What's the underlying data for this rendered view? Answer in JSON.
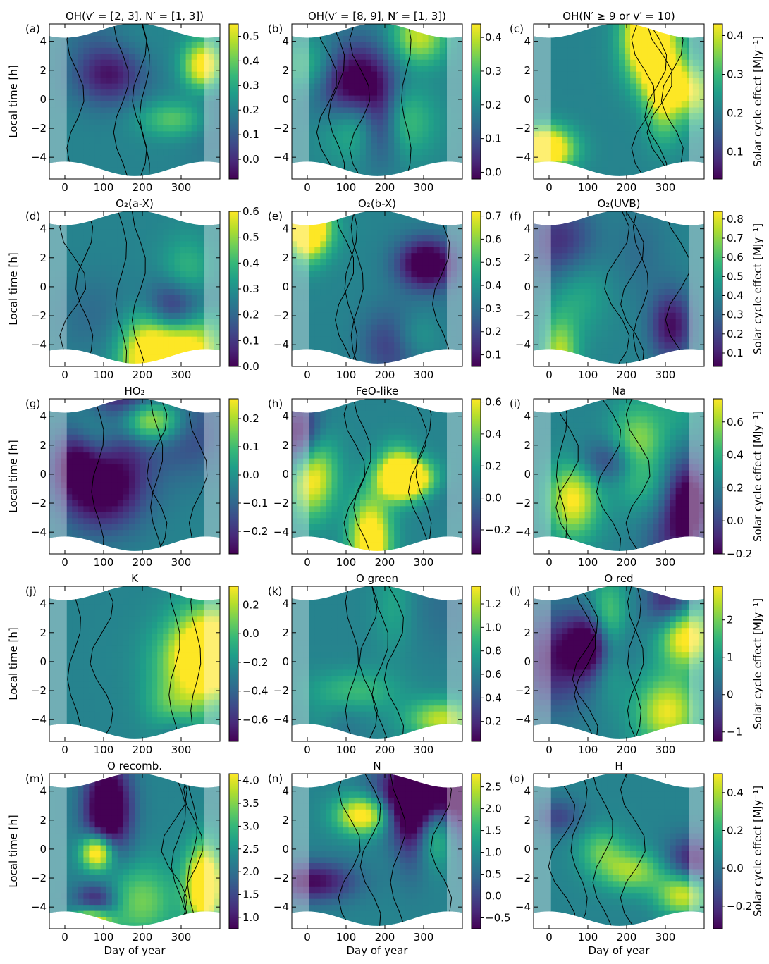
{
  "figure": {
    "row_ylabel": "Local time [h]",
    "col_xlabel": "Day of year",
    "cbar_label": "Solar cycle effect [MJy⁻¹]"
  },
  "chart_data": [
    {
      "type": "heatmap",
      "letter": "(a)",
      "title": "OH(v′ = [2, 3], N′ = [1, 3])",
      "xlim": [
        -40,
        400
      ],
      "ylim": [
        -5.5,
        5.2
      ],
      "xticks": [
        "0",
        "100",
        "200",
        "300"
      ],
      "yticks": [
        "4",
        "2",
        "0",
        "−2",
        "−4"
      ],
      "colorbar": {
        "range": [
          -0.08,
          0.55
        ],
        "ticks": [
          "0.0",
          "0.1",
          "0.2",
          "0.3",
          "0.4",
          "0.5"
        ],
        "tick_values": [
          0.0,
          0.1,
          0.2,
          0.3,
          0.4,
          0.5
        ]
      },
      "colormap": "viridis"
    },
    {
      "type": "heatmap",
      "letter": "(b)",
      "title": "OH(v′ = [8, 9], N′ = [1, 3])",
      "xlim": [
        -40,
        400
      ],
      "ylim": [
        -5.5,
        5.2
      ],
      "xticks": [
        "0",
        "100",
        "200",
        "300"
      ],
      "yticks": [
        "4",
        "2",
        "0",
        "−2",
        "−4"
      ],
      "colorbar": {
        "range": [
          -0.02,
          0.44
        ],
        "ticks": [
          "0.0",
          "0.1",
          "0.2",
          "0.3",
          "0.4"
        ],
        "tick_values": [
          0.0,
          0.1,
          0.2,
          0.3,
          0.4
        ]
      },
      "colormap": "viridis"
    },
    {
      "type": "heatmap",
      "letter": "(c)",
      "title": "OH(N′ ≥ 9 or v′ = 10)",
      "xlim": [
        -40,
        400
      ],
      "ylim": [
        -5.5,
        5.2
      ],
      "xticks": [
        "0",
        "100",
        "200",
        "300"
      ],
      "yticks": [
        "4",
        "2",
        "0",
        "−2",
        "−4"
      ],
      "colorbar": {
        "range": [
          0.03,
          0.43
        ],
        "ticks": [
          "0.1",
          "0.2",
          "0.3",
          "0.4"
        ],
        "tick_values": [
          0.1,
          0.2,
          0.3,
          0.4
        ]
      },
      "colormap": "viridis"
    },
    {
      "type": "heatmap",
      "letter": "(d)",
      "title": "O₂(a-X)",
      "xlim": [
        -40,
        400
      ],
      "ylim": [
        -5.5,
        5.2
      ],
      "xticks": [
        "0",
        "100",
        "200",
        "300"
      ],
      "yticks": [
        "4",
        "2",
        "0",
        "−2",
        "−4"
      ],
      "colorbar": {
        "range": [
          0.0,
          0.6
        ],
        "ticks": [
          "0.0",
          "0.1",
          "0.2",
          "0.3",
          "0.4",
          "0.5",
          "0.6"
        ],
        "tick_values": [
          0.0,
          0.1,
          0.2,
          0.3,
          0.4,
          0.5,
          0.6
        ]
      },
      "colormap": "viridis"
    },
    {
      "type": "heatmap",
      "letter": "(e)",
      "title": "O₂(b-X)",
      "xlim": [
        -40,
        400
      ],
      "ylim": [
        -5.5,
        5.2
      ],
      "xticks": [
        "0",
        "100",
        "200",
        "300"
      ],
      "yticks": [
        "4",
        "2",
        "0",
        "−2",
        "−4"
      ],
      "colorbar": {
        "range": [
          0.05,
          0.72
        ],
        "ticks": [
          "0.1",
          "0.2",
          "0.3",
          "0.4",
          "0.5",
          "0.6",
          "0.7"
        ],
        "tick_values": [
          0.1,
          0.2,
          0.3,
          0.4,
          0.5,
          0.6,
          0.7
        ]
      },
      "colormap": "viridis"
    },
    {
      "type": "heatmap",
      "letter": "(f)",
      "title": "O₂(UVB)",
      "xlim": [
        -40,
        400
      ],
      "ylim": [
        -5.5,
        5.2
      ],
      "xticks": [
        "0",
        "100",
        "200",
        "300"
      ],
      "yticks": [
        "4",
        "2",
        "0",
        "−2",
        "−4"
      ],
      "colorbar": {
        "range": [
          0.03,
          0.84
        ],
        "ticks": [
          "0.1",
          "0.2",
          "0.3",
          "0.4",
          "0.5",
          "0.6",
          "0.7",
          "0.8"
        ],
        "tick_values": [
          0.1,
          0.2,
          0.3,
          0.4,
          0.5,
          0.6,
          0.7,
          0.8
        ]
      },
      "colormap": "viridis"
    },
    {
      "type": "heatmap",
      "letter": "(g)",
      "title": "HO₂",
      "xlim": [
        -40,
        400
      ],
      "ylim": [
        -5.5,
        5.2
      ],
      "xticks": [
        "0",
        "100",
        "200",
        "300"
      ],
      "yticks": [
        "4",
        "2",
        "0",
        "−2",
        "−4"
      ],
      "colorbar": {
        "range": [
          -0.28,
          0.27
        ],
        "ticks": [
          "−0.2",
          "−0.1",
          "0.0",
          "0.1",
          "0.2"
        ],
        "tick_values": [
          -0.2,
          -0.1,
          0.0,
          0.1,
          0.2
        ]
      },
      "colormap": "viridis"
    },
    {
      "type": "heatmap",
      "letter": "(h)",
      "title": "FeO-like",
      "xlim": [
        -40,
        400
      ],
      "ylim": [
        -5.5,
        5.2
      ],
      "xticks": [
        "0",
        "100",
        "200",
        "300"
      ],
      "yticks": [
        "4",
        "2",
        "0",
        "−2",
        "−4"
      ],
      "colorbar": {
        "range": [
          -0.35,
          0.62
        ],
        "ticks": [
          "−0.2",
          "0.0",
          "0.2",
          "0.4",
          "0.6"
        ],
        "tick_values": [
          -0.2,
          0.0,
          0.2,
          0.4,
          0.6
        ]
      },
      "colormap": "viridis"
    },
    {
      "type": "heatmap",
      "letter": "(i)",
      "title": "Na",
      "xlim": [
        -40,
        400
      ],
      "ylim": [
        -5.5,
        5.2
      ],
      "xticks": [
        "0",
        "100",
        "200",
        "300"
      ],
      "yticks": [
        "4",
        "2",
        "0",
        "−2",
        "−4"
      ],
      "colorbar": {
        "range": [
          -0.2,
          0.74
        ],
        "ticks": [
          "−0.2",
          "0.0",
          "0.2",
          "0.4",
          "0.6"
        ],
        "tick_values": [
          -0.2,
          0.0,
          0.2,
          0.4,
          0.6
        ]
      },
      "colormap": "viridis"
    },
    {
      "type": "heatmap",
      "letter": "(j)",
      "title": "K",
      "xlim": [
        -40,
        400
      ],
      "ylim": [
        -5.5,
        5.2
      ],
      "xticks": [
        "0",
        "100",
        "200",
        "300"
      ],
      "yticks": [
        "4",
        "2",
        "0",
        "−2",
        "−4"
      ],
      "colorbar": {
        "range": [
          -0.75,
          0.33
        ],
        "ticks": [
          "−0.6",
          "−0.4",
          "−0.2",
          "0.0",
          "0.2"
        ],
        "tick_values": [
          -0.6,
          -0.4,
          -0.2,
          0.0,
          0.2
        ]
      },
      "colormap": "viridis"
    },
    {
      "type": "heatmap",
      "letter": "(k)",
      "title": "O green",
      "xlim": [
        -40,
        400
      ],
      "ylim": [
        -5.5,
        5.2
      ],
      "xticks": [
        "0",
        "100",
        "200",
        "300"
      ],
      "yticks": [
        "4",
        "2",
        "0",
        "−2",
        "−4"
      ],
      "colorbar": {
        "range": [
          0.03,
          1.35
        ],
        "ticks": [
          "0.2",
          "0.4",
          "0.6",
          "0.8",
          "1.0",
          "1.2"
        ],
        "tick_values": [
          0.2,
          0.4,
          0.6,
          0.8,
          1.0,
          1.2
        ]
      },
      "colormap": "viridis"
    },
    {
      "type": "heatmap",
      "letter": "(l)",
      "title": "O red",
      "xlim": [
        -40,
        400
      ],
      "ylim": [
        -5.5,
        5.2
      ],
      "xticks": [
        "0",
        "100",
        "200",
        "300"
      ],
      "yticks": [
        "4",
        "2",
        "0",
        "−2",
        "−4"
      ],
      "colorbar": {
        "range": [
          -1.25,
          2.9
        ],
        "ticks": [
          "−1",
          "0",
          "1",
          "2"
        ],
        "tick_values": [
          -1,
          0,
          1,
          2
        ]
      },
      "colormap": "viridis"
    },
    {
      "type": "heatmap",
      "letter": "(m)",
      "title": "O recomb.",
      "xlim": [
        -40,
        400
      ],
      "ylim": [
        -5.5,
        5.2
      ],
      "xticks": [
        "0",
        "100",
        "200",
        "300"
      ],
      "yticks": [
        "4",
        "2",
        "0",
        "−2",
        "−4"
      ],
      "colorbar": {
        "range": [
          0.75,
          4.15
        ],
        "ticks": [
          "1.0",
          "1.5",
          "2.0",
          "2.5",
          "3.0",
          "3.5",
          "4.0"
        ],
        "tick_values": [
          1.0,
          1.5,
          2.0,
          2.5,
          3.0,
          3.5,
          4.0
        ]
      },
      "colormap": "viridis"
    },
    {
      "type": "heatmap",
      "letter": "(n)",
      "title": "N",
      "xlim": [
        -40,
        400
      ],
      "ylim": [
        -5.5,
        5.2
      ],
      "xticks": [
        "0",
        "100",
        "200",
        "300"
      ],
      "yticks": [
        "4",
        "2",
        "0",
        "−2",
        "−4"
      ],
      "colorbar": {
        "range": [
          -0.75,
          2.8
        ],
        "ticks": [
          "−0.5",
          "0.0",
          "0.5",
          "1.0",
          "1.5",
          "2.0",
          "2.5"
        ],
        "tick_values": [
          -0.5,
          0.0,
          0.5,
          1.0,
          1.5,
          2.0,
          2.5
        ]
      },
      "colormap": "viridis"
    },
    {
      "type": "heatmap",
      "letter": "(o)",
      "title": "H",
      "xlim": [
        -40,
        400
      ],
      "ylim": [
        -5.5,
        5.2
      ],
      "xticks": [
        "0",
        "100",
        "200",
        "300"
      ],
      "yticks": [
        "4",
        "2",
        "0",
        "−2",
        "−4"
      ],
      "colorbar": {
        "range": [
          -0.32,
          0.5
        ],
        "ticks": [
          "−0.2",
          "0.0",
          "0.2",
          "0.4"
        ],
        "tick_values": [
          -0.2,
          0.0,
          0.2,
          0.4
        ]
      },
      "colormap": "viridis"
    }
  ]
}
